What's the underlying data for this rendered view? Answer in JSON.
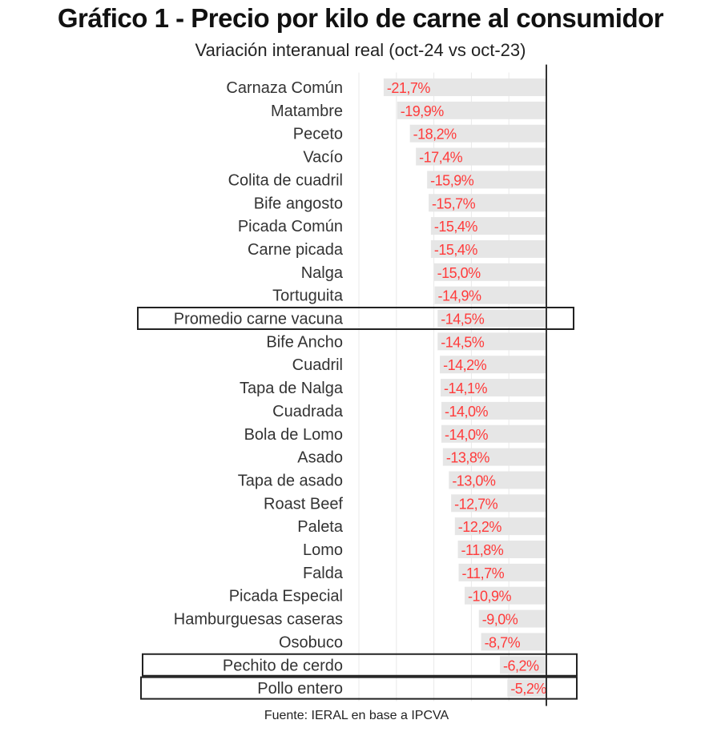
{
  "header": {
    "title": "Gráfico 1 - Precio por kilo de carne al consumidor",
    "subtitle": "Variación interanual real (oct-24 vs oct-23)"
  },
  "footer": {
    "source": "Fuente: IERAL en base a IPCVA"
  },
  "colors": {
    "bar": "#e6e6e6",
    "value_label": "#ff3b3b",
    "category_label": "#333333",
    "axis": "#333333",
    "grid": "#e9e9e9",
    "highlight_box": "#222222"
  },
  "chart_data": {
    "type": "bar",
    "orientation": "horizontal",
    "title": "Gráfico 1 - Precio por kilo de carne al consumidor",
    "subtitle": "Variación interanual real (oct-24 vs oct-23)",
    "categories": [
      "Carnaza Común",
      "Matambre",
      "Peceto",
      "Vacío",
      "Colita de cuadril",
      "Bife angosto",
      "Picada Común",
      "Carne picada",
      "Nalga",
      "Tortuguita",
      "Promedio carne vacuna",
      "Bife Ancho",
      "Cuadril",
      "Tapa de Nalga",
      "Cuadrada",
      "Bola de Lomo",
      "Asado",
      "Tapa de asado",
      "Roast Beef",
      "Paleta",
      "Lomo",
      "Falda",
      "Picada Especial",
      "Hamburguesas caseras",
      "Osobuco",
      "Pechito de cerdo",
      "Pollo entero"
    ],
    "values": [
      -21.7,
      -19.9,
      -18.2,
      -17.4,
      -15.9,
      -15.7,
      -15.4,
      -15.4,
      -15.0,
      -14.9,
      -14.5,
      -14.5,
      -14.2,
      -14.1,
      -14.0,
      -14.0,
      -13.8,
      -13.0,
      -12.7,
      -12.2,
      -11.8,
      -11.7,
      -10.9,
      -9.0,
      -8.7,
      -6.2,
      -5.2
    ],
    "value_labels": [
      "-21,7%",
      "-19,9%",
      "-18,2%",
      "-17,4%",
      "-15,9%",
      "-15,7%",
      "-15,4%",
      "-15,4%",
      "-15,0%",
      "-14,9%",
      "-14,5%",
      "-14,5%",
      "-14,2%",
      "-14,1%",
      "-14,0%",
      "-14,0%",
      "-13,8%",
      "-13,0%",
      "-12,7%",
      "-12,2%",
      "-11,8%",
      "-11,7%",
      "-10,9%",
      "-9,0%",
      "-8,7%",
      "-6,2%",
      "-5,2%"
    ],
    "highlighted": [
      "Promedio carne vacuna",
      "Pechito de cerdo",
      "Pollo entero"
    ],
    "xlim": [
      -25,
      0
    ],
    "x_gridlines": [
      -25,
      -20,
      -15,
      -10,
      -5,
      0
    ],
    "xlabel": "",
    "ylabel": "",
    "grid": true,
    "legend": "none"
  }
}
